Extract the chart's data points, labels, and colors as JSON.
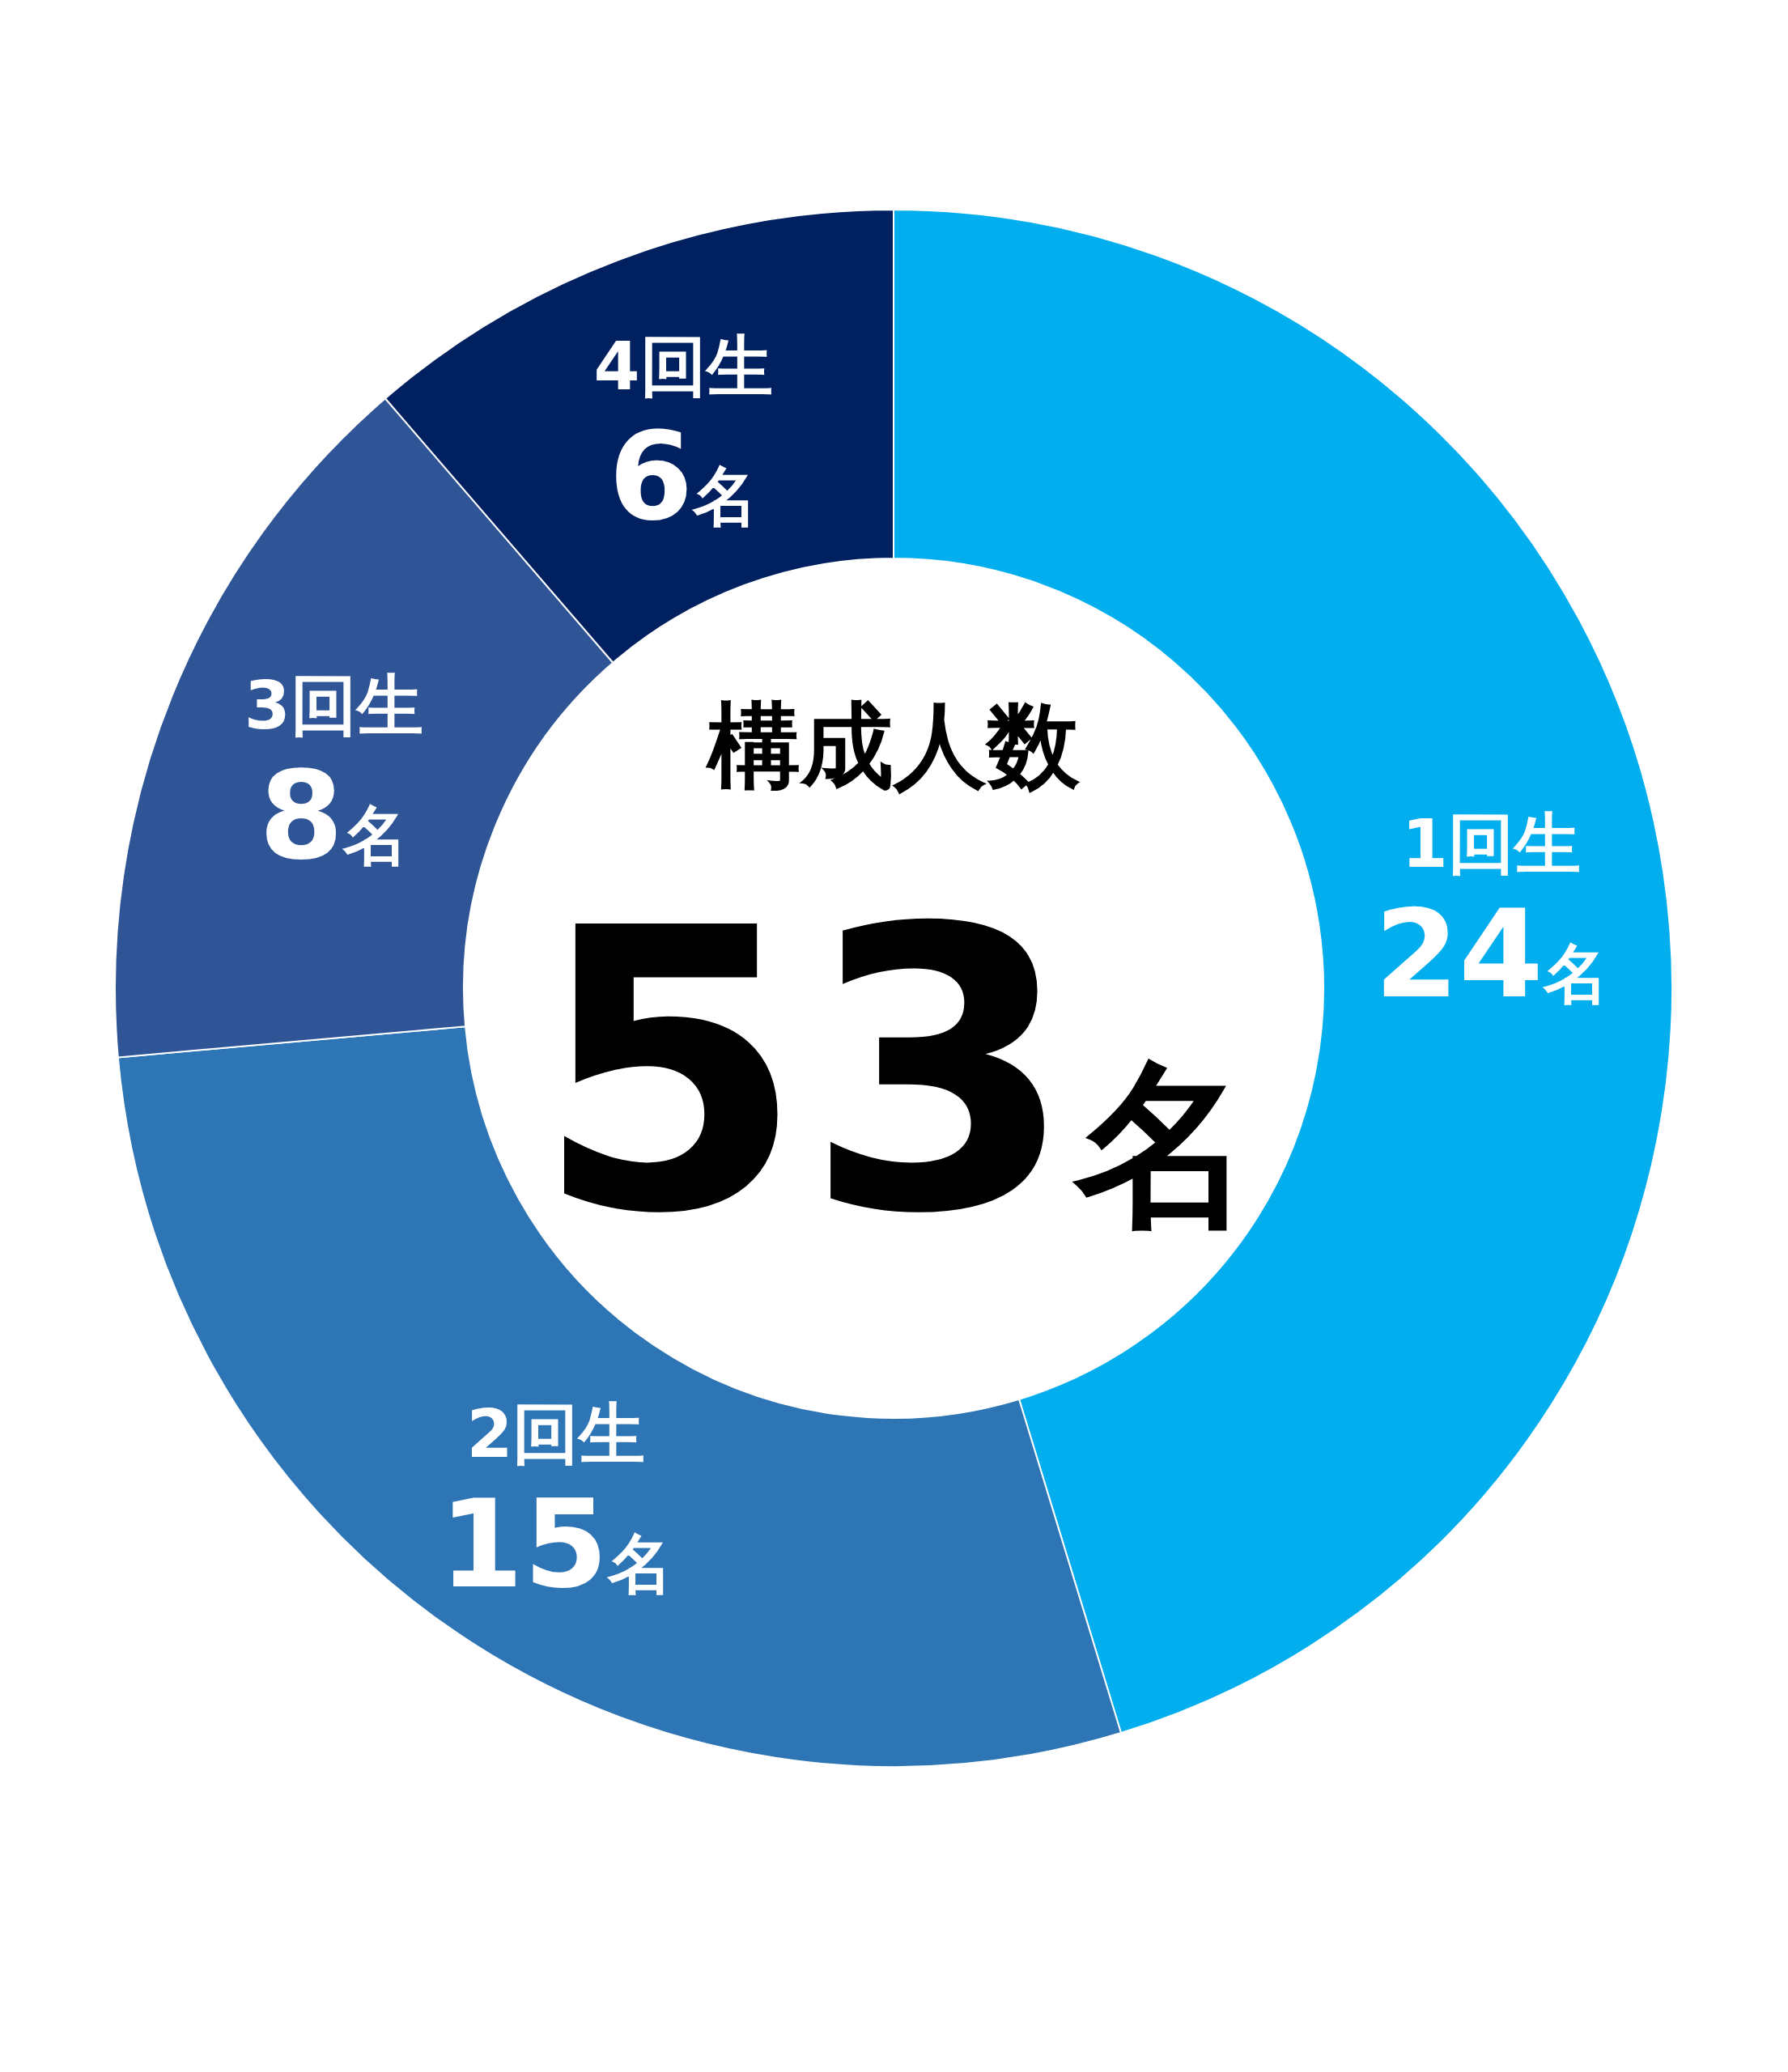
{
  "chart_data": {
    "type": "donut",
    "title": "構成人数",
    "subtitle": "53名",
    "categories": [
      "1回生",
      "2回生",
      "3回生",
      "4回生"
    ],
    "values": [
      24,
      15,
      8,
      6
    ],
    "colors": [
      "#03aeef",
      "#2e75b5",
      "#2f5597",
      "#002060"
    ],
    "value_labels": [
      "24名",
      "15名",
      "8名",
      "6名"
    ],
    "legend": false
  }
}
